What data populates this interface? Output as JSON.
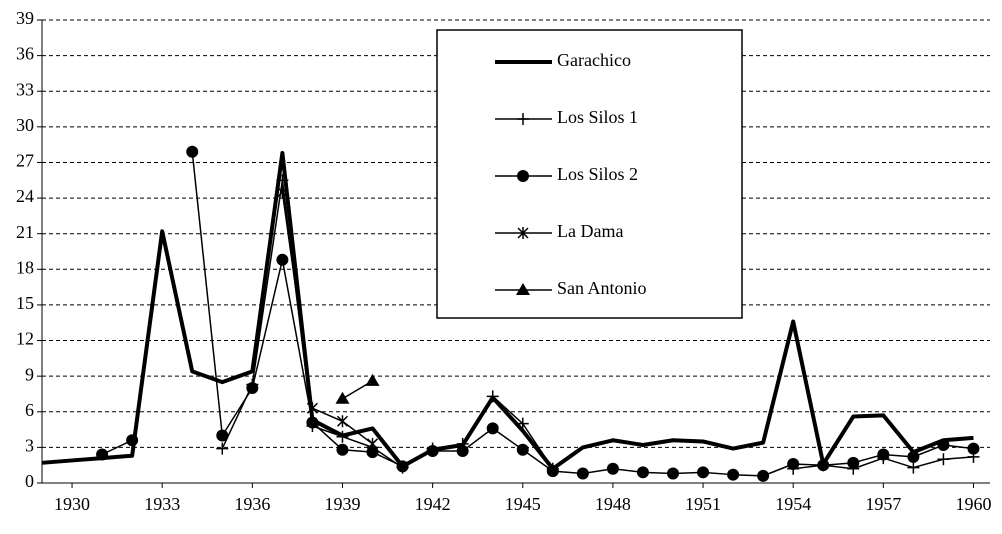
{
  "chart_data": {
    "type": "line",
    "x": [
      1929,
      1930,
      1931,
      1932,
      1933,
      1934,
      1935,
      1936,
      1937,
      1938,
      1939,
      1940,
      1941,
      1942,
      1943,
      1944,
      1945,
      1946,
      1947,
      1948,
      1949,
      1950,
      1951,
      1952,
      1953,
      1954,
      1955,
      1956,
      1957,
      1958,
      1959,
      1960
    ],
    "xlim": [
      1929,
      1960.55
    ],
    "xticks": [
      1930,
      1933,
      1936,
      1939,
      1942,
      1945,
      1948,
      1951,
      1954,
      1957,
      1960
    ],
    "ylim": [
      0,
      39
    ],
    "yticks": [
      0,
      3,
      6,
      9,
      12,
      15,
      18,
      21,
      24,
      27,
      30,
      33,
      36,
      39
    ],
    "grid": true,
    "legend": "top-center",
    "series": [
      {
        "name": "Garachico",
        "color": "#000000",
        "marker": "none",
        "values": [
          1.7,
          1.9,
          2.1,
          2.3,
          21.2,
          9.4,
          8.5,
          9.4,
          27.8,
          5.3,
          4.0,
          4.6,
          1.4,
          2.8,
          3.2,
          7.2,
          4.4,
          1.2,
          3.0,
          3.6,
          3.2,
          3.6,
          3.5,
          2.9,
          3.4,
          13.6,
          1.6,
          5.6,
          5.7,
          2.6,
          3.6,
          3.8
        ]
      },
      {
        "name": "Los Silos 1",
        "color": "#000000",
        "marker": "plus",
        "values": [
          null,
          null,
          null,
          null,
          null,
          null,
          2.9,
          8.3,
          25.5,
          4.8,
          3.9,
          3.0,
          1.3,
          2.9,
          3.3,
          7.3,
          5.0,
          1.2,
          null,
          null,
          null,
          null,
          null,
          null,
          null,
          1.2,
          1.5,
          1.2,
          2.1,
          1.3,
          2.0,
          2.2
        ]
      },
      {
        "name": "Los Silos 2",
        "color": "#000000",
        "marker": "circle",
        "values": [
          null,
          null,
          2.4,
          3.6,
          null,
          27.9,
          4.0,
          8.0,
          18.8,
          5.1,
          2.8,
          2.6,
          1.4,
          2.7,
          2.7,
          4.6,
          2.8,
          1.0,
          0.8,
          1.2,
          0.9,
          0.8,
          0.9,
          0.7,
          0.6,
          1.6,
          1.5,
          1.7,
          2.4,
          2.2,
          3.2,
          2.9
        ]
      },
      {
        "name": "La Dama",
        "color": "#000000",
        "marker": "star",
        "values": [
          null,
          null,
          null,
          null,
          null,
          null,
          null,
          null,
          24.5,
          6.3,
          5.2,
          3.3,
          null,
          null,
          null,
          null,
          null,
          null,
          null,
          null,
          null,
          null,
          null,
          null,
          null,
          null,
          null,
          null,
          null,
          null,
          null,
          null
        ]
      },
      {
        "name": "San Antonio",
        "color": "#000000",
        "marker": "triangle",
        "values": [
          null,
          null,
          null,
          null,
          null,
          null,
          null,
          null,
          null,
          null,
          7.1,
          8.6,
          null,
          null,
          null,
          null,
          null,
          null,
          null,
          null,
          null,
          null,
          null,
          null,
          null,
          null,
          null,
          null,
          null,
          null,
          null,
          null
        ]
      }
    ]
  }
}
